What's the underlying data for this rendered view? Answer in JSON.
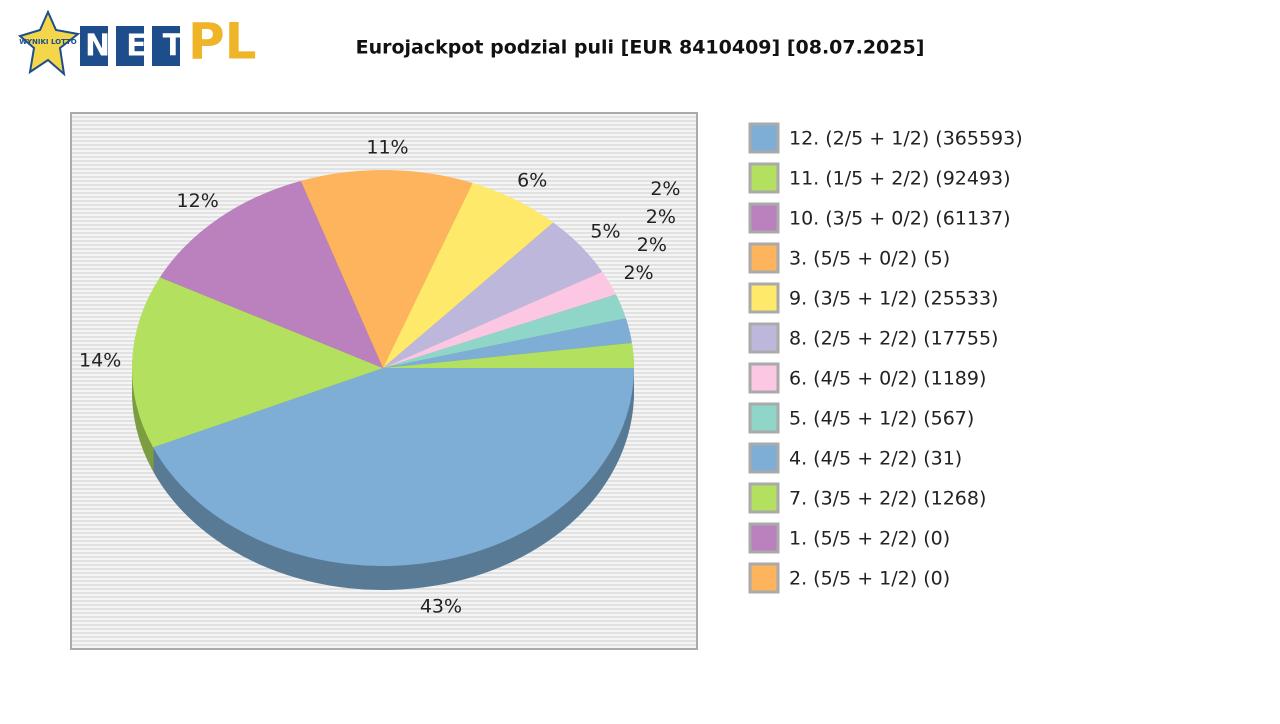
{
  "logo": {
    "badge": "WYNIKI LOTTO",
    "left": "NET",
    "right": "PL"
  },
  "chart_data": {
    "type": "pie3d",
    "title": "Eurojackpot podzial puli [EUR 8410409] [08.07.2025]",
    "categories": [
      "12. (2/5 + 1/2) (365593)",
      "11. (1/5 + 2/2) (92493)",
      "10. (3/5 + 0/2) (61137)",
      "3. (5/5 + 0/2) (5)",
      "9. (3/5 + 1/2) (25533)",
      "8. (2/5 + 2/2) (17755)",
      "6. (4/5 + 0/2) (1189)",
      "5. (4/5 + 1/2) (567)",
      "4. (4/5 + 2/2) (31)",
      "7. (3/5 + 2/2) (1268)",
      "1. (5/5 + 2/2) (0)",
      "2. (5/5 + 1/2) (0)"
    ],
    "values": [
      43,
      14,
      12,
      11,
      6,
      5,
      2,
      2,
      2,
      2,
      0,
      0
    ],
    "value_labels": [
      "43%",
      "14%",
      "12%",
      "11%",
      "6%",
      "5%",
      "2%",
      "2%",
      "2%",
      "2%",
      null,
      null
    ],
    "colors": [
      "#7eaed5",
      "#b3e05f",
      "#bb80be",
      "#fdb45c",
      "#fee96a",
      "#bdb8db",
      "#fbc7e2",
      "#8fd6c8",
      "#7eaed5",
      "#b3e05f",
      "#bb80be",
      "#fdb45c"
    ],
    "legend": "right"
  }
}
